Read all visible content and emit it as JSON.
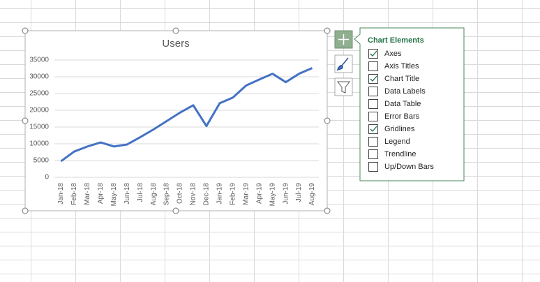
{
  "chart_data": {
    "type": "line",
    "title": "Users",
    "categories": [
      "Jan-18",
      "Feb-18",
      "Mar-18",
      "Apr-18",
      "May-18",
      "Jun-18",
      "Jul-18",
      "Aug-18",
      "Sep-18",
      "Oct-18",
      "Nov-18",
      "Dec-18",
      "Jan-19",
      "Feb-19",
      "Mar-19",
      "Apr-19",
      "May-19",
      "Jun-19",
      "Jul-19",
      "Aug-19"
    ],
    "values": [
      4800,
      7700,
      9200,
      10400,
      9200,
      9800,
      12000,
      14300,
      16800,
      19300,
      21500,
      15300,
      22100,
      23800,
      27400,
      29200,
      30900,
      28400,
      30900,
      32600
    ],
    "color": "#4472c4",
    "ylim": [
      0,
      35000
    ],
    "yticks": [
      0,
      5000,
      10000,
      15000,
      20000,
      25000,
      30000,
      35000
    ],
    "grid": true
  },
  "chart_elements": {
    "title": "Chart Elements",
    "items": [
      {
        "label": "Axes",
        "checked": true
      },
      {
        "label": "Axis Titles",
        "checked": false
      },
      {
        "label": "Chart Title",
        "checked": true
      },
      {
        "label": "Data Labels",
        "checked": false
      },
      {
        "label": "Data Table",
        "checked": false
      },
      {
        "label": "Error Bars",
        "checked": false
      },
      {
        "label": "Gridlines",
        "checked": true
      },
      {
        "label": "Legend",
        "checked": false
      },
      {
        "label": "Trendline",
        "checked": false
      },
      {
        "label": "Up/Down Bars",
        "checked": false
      }
    ]
  }
}
